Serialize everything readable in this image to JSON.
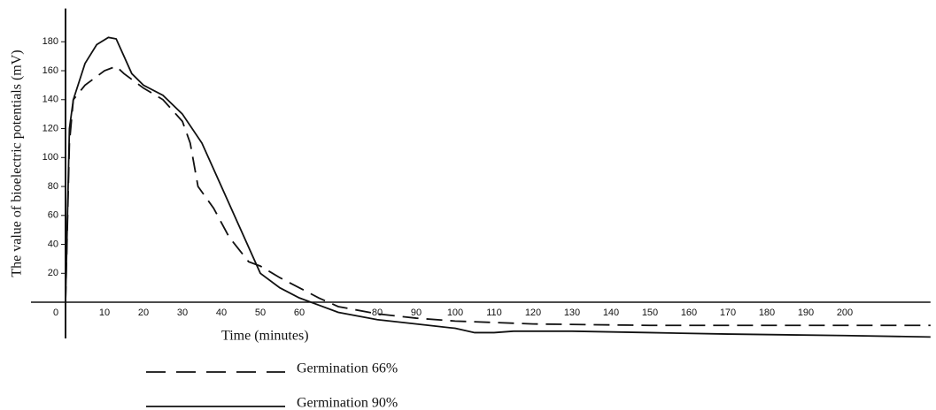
{
  "chart_data": {
    "type": "line",
    "xlabel": "Time (minutes)",
    "ylabel": "The value of bioelectric potentials (mV)",
    "xlim": [
      0,
      222
    ],
    "ylim": [
      -25,
      203
    ],
    "xticks": [
      0,
      10,
      20,
      30,
      40,
      50,
      60,
      80,
      90,
      100,
      110,
      120,
      130,
      140,
      150,
      160,
      170,
      180,
      190,
      200
    ],
    "yticks": [
      20,
      40,
      60,
      80,
      100,
      120,
      140,
      160,
      180
    ],
    "series": [
      {
        "name": "Germination 66%",
        "color": "#111111",
        "style": "dashed",
        "x": [
          0,
          1,
          2,
          5,
          10,
          13,
          15,
          20,
          25,
          30,
          32,
          34,
          38,
          42,
          47,
          50,
          55,
          60,
          65,
          70,
          80,
          90,
          100,
          120,
          150,
          200,
          222
        ],
        "values": [
          0,
          110,
          140,
          150,
          160,
          163,
          158,
          148,
          140,
          125,
          110,
          80,
          65,
          45,
          28,
          25,
          17,
          10,
          3,
          -3,
          -8,
          -11,
          -13,
          -15,
          -16,
          -16,
          -16
        ]
      },
      {
        "name": "Germination 90%",
        "color": "#111111",
        "style": "solid",
        "x": [
          0,
          0.5,
          1,
          2,
          5,
          8,
          11,
          13,
          15,
          17,
          20,
          25,
          30,
          35,
          40,
          45,
          48,
          50,
          55,
          60,
          65,
          70,
          80,
          90,
          100,
          105,
          110,
          115,
          130,
          150,
          170,
          200,
          222
        ],
        "values": [
          0,
          60,
          120,
          140,
          165,
          178,
          183,
          182,
          170,
          158,
          150,
          143,
          130,
          110,
          80,
          50,
          32,
          20,
          10,
          3,
          -2,
          -7,
          -12,
          -15,
          -18,
          -21,
          -21,
          -20,
          -20,
          -21,
          -22,
          -23,
          -24
        ]
      }
    ]
  }
}
